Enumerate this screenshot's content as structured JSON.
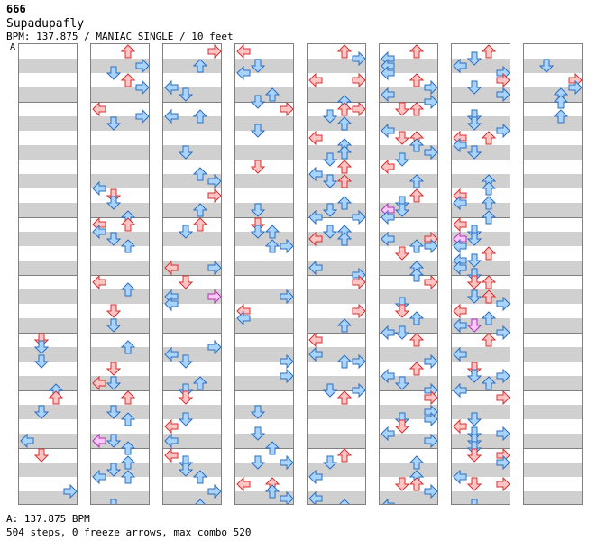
{
  "song_id": "666",
  "title": "Supadupafly",
  "info": "BPM: 137.875 / MANIAC SINGLE / 10 feet",
  "marker": "A",
  "footer_bpm": "A: 137.875 BPM",
  "footer_stats": "504 steps, 0 freeze arrows, max combo 520",
  "colors": {
    "red": "#ffc4c4",
    "red_stroke": "#d43030",
    "blue": "#a8d4ff",
    "blue_stroke": "#2c6fc0",
    "pink": "#ffc8ff",
    "pink_stroke": "#b030b0",
    "stripe": "#d0d0d0",
    "border": "#808080"
  },
  "columns": 8,
  "measures_per_column": 8
}
